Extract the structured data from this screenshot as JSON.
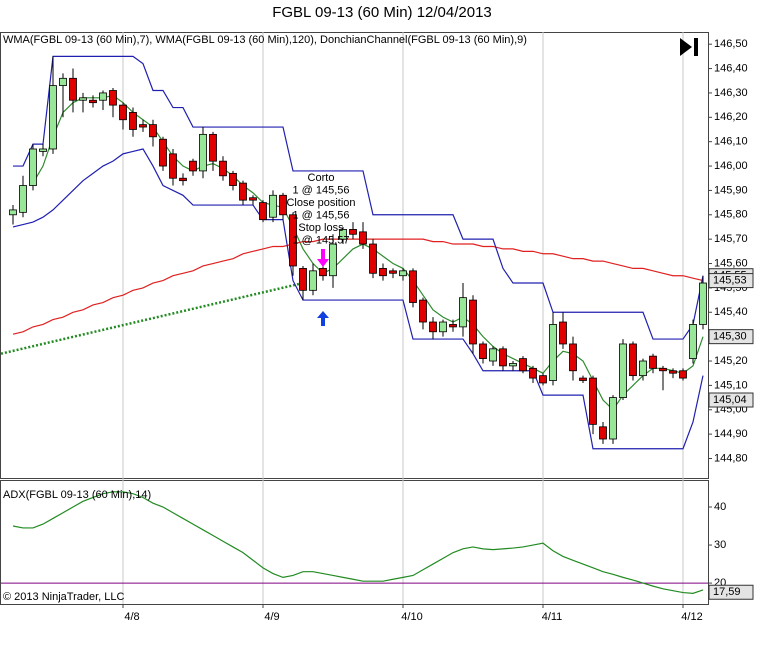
{
  "chart_data": [
    {
      "type": "candlestick",
      "title": "FGBL 09-13 (60 Min)  12/04/2013",
      "subtitle": "WMA(FGBL 09-13 (60 Min),7), WMA(FGBL 09-13 (60 Min),120), DonchianChannel(FGBL 09-13 (60 Min),9)",
      "categories": [
        null,
        null,
        null,
        null,
        null,
        null,
        null,
        null,
        null,
        null,
        null,
        "4/8",
        null,
        null,
        null,
        null,
        null,
        null,
        null,
        null,
        null,
        null,
        null,
        null,
        null,
        "4/9",
        null,
        null,
        null,
        null,
        null,
        null,
        null,
        null,
        null,
        null,
        null,
        null,
        null,
        "4/10",
        null,
        null,
        null,
        null,
        null,
        null,
        null,
        null,
        null,
        null,
        null,
        null,
        null,
        "4/11",
        null,
        null,
        null,
        null,
        null,
        null,
        null,
        null,
        null,
        null,
        null,
        null,
        null,
        "4/12",
        null,
        null
      ],
      "open": [
        145.8,
        145.81,
        145.92,
        146.06,
        146.07,
        146.33,
        146.36,
        146.27,
        146.27,
        146.27,
        146.31,
        146.25,
        146.22,
        146.17,
        146.17,
        146.11,
        146.05,
        145.95,
        146.02,
        145.98,
        146.13,
        146.02,
        145.97,
        145.93,
        145.87,
        145.85,
        145.79,
        145.88,
        145.8,
        145.58,
        145.49,
        145.58,
        145.55,
        145.7,
        145.74,
        145.73,
        145.68,
        145.58,
        145.57,
        145.55,
        145.57,
        145.45,
        145.36,
        145.32,
        145.35,
        145.34,
        145.45,
        145.27,
        145.2,
        145.25,
        145.18,
        145.21,
        145.17,
        145.14,
        145.12,
        145.36,
        145.27,
        145.13,
        145.13,
        144.93,
        144.88,
        145.05,
        145.27,
        145.14,
        145.22,
        145.17,
        145.16,
        145.16,
        145.21,
        145.35
      ],
      "high": [
        145.84,
        145.96,
        146.09,
        146.09,
        146.45,
        146.38,
        146.4,
        146.3,
        146.29,
        146.31,
        146.32,
        146.26,
        146.24,
        146.19,
        146.19,
        146.12,
        146.07,
        145.97,
        146.03,
        146.16,
        146.14,
        146.04,
        145.98,
        145.94,
        145.88,
        145.86,
        145.9,
        145.89,
        145.81,
        145.59,
        145.6,
        145.59,
        145.72,
        145.75,
        145.77,
        145.77,
        145.7,
        145.6,
        145.58,
        145.58,
        145.58,
        145.46,
        145.38,
        145.37,
        145.37,
        145.52,
        145.47,
        145.28,
        145.26,
        145.26,
        145.2,
        145.22,
        145.18,
        145.15,
        145.4,
        145.4,
        145.3,
        145.14,
        145.14,
        144.95,
        145.06,
        145.29,
        145.28,
        145.21,
        145.23,
        145.18,
        145.17,
        145.17,
        145.37,
        145.55
      ],
      "low": [
        145.76,
        145.79,
        145.9,
        146.04,
        146.05,
        146.2,
        146.22,
        146.22,
        146.24,
        146.23,
        146.2,
        146.15,
        146.12,
        146.14,
        146.08,
        145.98,
        145.92,
        145.92,
        145.96,
        145.95,
        145.98,
        145.94,
        145.9,
        145.84,
        145.84,
        145.77,
        145.77,
        145.78,
        145.55,
        145.45,
        145.47,
        145.53,
        145.5,
        145.68,
        145.7,
        145.66,
        145.54,
        145.53,
        145.54,
        145.53,
        145.42,
        145.33,
        145.29,
        145.3,
        145.32,
        145.3,
        145.23,
        145.19,
        145.18,
        145.16,
        145.16,
        145.15,
        145.11,
        145.1,
        145.1,
        145.25,
        145.12,
        145.11,
        144.9,
        144.86,
        144.86,
        145.04,
        145.12,
        145.12,
        145.15,
        145.08,
        145.13,
        145.12,
        145.19,
        145.33
      ],
      "close": [
        145.82,
        145.92,
        146.07,
        146.07,
        146.33,
        146.36,
        146.27,
        146.28,
        146.26,
        146.3,
        146.25,
        146.19,
        146.15,
        146.16,
        146.12,
        146.0,
        145.95,
        145.94,
        145.98,
        146.13,
        146.02,
        145.96,
        145.92,
        145.86,
        145.86,
        145.78,
        145.88,
        145.8,
        145.59,
        145.49,
        145.57,
        145.55,
        145.68,
        145.74,
        145.72,
        145.68,
        145.56,
        145.55,
        145.56,
        145.57,
        145.44,
        145.36,
        145.32,
        145.36,
        145.34,
        145.46,
        145.27,
        145.21,
        145.25,
        145.18,
        145.19,
        145.16,
        145.13,
        145.11,
        145.35,
        145.27,
        145.16,
        145.12,
        144.94,
        144.88,
        145.05,
        145.27,
        145.14,
        145.2,
        145.17,
        145.16,
        145.15,
        145.13,
        145.35,
        145.52
      ],
      "up_color": "#98e698",
      "down_color": "#e00000",
      "series": [
        {
          "color": "#2e8b2e",
          "values": [
            null,
            null,
            145.93,
            146.0,
            146.12,
            146.22,
            146.26,
            146.28,
            146.28,
            146.28,
            146.29,
            146.26,
            146.22,
            146.19,
            146.16,
            146.1,
            146.04,
            146.0,
            145.98,
            146.0,
            146.01,
            145.99,
            145.96,
            145.92,
            145.89,
            145.85,
            145.84,
            145.83,
            145.75,
            145.66,
            145.6,
            145.56,
            145.58,
            145.62,
            145.66,
            145.68,
            145.66,
            145.63,
            145.6,
            145.58,
            145.53,
            145.47,
            145.41,
            145.38,
            145.36,
            145.38,
            145.35,
            145.3,
            145.26,
            145.23,
            145.21,
            145.19,
            145.17,
            145.15,
            145.2,
            145.24,
            145.23,
            145.2,
            145.12,
            145.04,
            145.0,
            145.06,
            145.1,
            145.14,
            145.17,
            145.17,
            145.16,
            145.15,
            145.18,
            145.3
          ]
        },
        {
          "color": "#e02020",
          "values": [
            145.31,
            145.32,
            145.34,
            145.35,
            145.37,
            145.38,
            145.4,
            145.41,
            145.43,
            145.44,
            145.46,
            145.47,
            145.49,
            145.5,
            145.52,
            145.53,
            145.55,
            145.56,
            145.57,
            145.59,
            145.6,
            145.61,
            145.62,
            145.64,
            145.65,
            145.66,
            145.67,
            145.67,
            145.68,
            145.69,
            145.69,
            145.7,
            145.7,
            145.7,
            145.7,
            145.7,
            145.7,
            145.7,
            145.7,
            145.7,
            145.7,
            145.7,
            145.69,
            145.69,
            145.68,
            145.68,
            145.68,
            145.67,
            145.67,
            145.66,
            145.66,
            145.65,
            145.65,
            145.64,
            145.64,
            145.63,
            145.62,
            145.62,
            145.61,
            145.61,
            145.6,
            145.59,
            145.58,
            145.58,
            145.57,
            145.56,
            145.55,
            145.55,
            145.54,
            145.53
          ]
        },
        {
          "color": "#2020b0",
          "values": [
            146.0,
            146.0,
            146.09,
            146.09,
            146.45,
            146.45,
            146.45,
            146.45,
            146.45,
            146.45,
            146.45,
            146.45,
            146.45,
            146.42,
            146.31,
            146.31,
            146.24,
            146.24,
            146.16,
            146.16,
            146.16,
            146.16,
            146.16,
            146.16,
            146.16,
            146.16,
            146.16,
            146.16,
            145.98,
            145.98,
            145.98,
            145.98,
            145.98,
            145.98,
            145.98,
            145.98,
            145.8,
            145.8,
            145.8,
            145.8,
            145.8,
            145.8,
            145.8,
            145.8,
            145.8,
            145.7,
            145.7,
            145.7,
            145.7,
            145.58,
            145.52,
            145.52,
            145.52,
            145.52,
            145.4,
            145.4,
            145.4,
            145.4,
            145.4,
            145.4,
            145.4,
            145.4,
            145.4,
            145.4,
            145.29,
            145.29,
            145.29,
            145.29,
            145.35,
            145.55
          ]
        },
        {
          "color": "#2020b0",
          "values": [
            145.75,
            145.76,
            145.77,
            145.79,
            145.82,
            145.86,
            145.9,
            145.94,
            145.97,
            146.0,
            146.02,
            146.05,
            146.06,
            146.07,
            146.0,
            145.92,
            145.9,
            145.88,
            145.84,
            145.84,
            145.84,
            145.84,
            145.84,
            145.84,
            145.84,
            145.78,
            145.78,
            145.78,
            145.53,
            145.45,
            145.45,
            145.45,
            145.45,
            145.45,
            145.45,
            145.45,
            145.45,
            145.45,
            145.45,
            145.45,
            145.29,
            145.29,
            145.29,
            145.29,
            145.29,
            145.29,
            145.23,
            145.16,
            145.16,
            145.16,
            145.16,
            145.16,
            145.16,
            145.06,
            145.06,
            145.06,
            145.06,
            145.06,
            144.84,
            144.84,
            144.84,
            144.84,
            144.84,
            144.84,
            144.84,
            144.84,
            144.84,
            144.84,
            144.95,
            145.14
          ]
        }
      ],
      "trade_line": {
        "values": [
          145.23,
          145.52
        ],
        "color": "#228b22"
      },
      "annotations": [
        "Corto",
        "1 @ 145,56",
        "Close position",
        "1 @ 145,56",
        "Stop loss",
        "1 @ 145,57"
      ],
      "markers": [
        {
          "value": 145.55,
          "label": "145,55"
        },
        {
          "value": 145.53,
          "label": "145,53"
        },
        {
          "value": 145.3,
          "label": "145,30"
        },
        {
          "value": 145.04,
          "label": "145,04"
        }
      ],
      "ylim": [
        144.72,
        146.55
      ],
      "yticks": [
        {
          "value": 146.5,
          "label": "146,50"
        },
        {
          "value": 146.4,
          "label": "146,40"
        },
        {
          "value": 146.3,
          "label": "146,30"
        },
        {
          "value": 146.2,
          "label": "146,20"
        },
        {
          "value": 146.1,
          "label": "146,10"
        },
        {
          "value": 146.0,
          "label": "146,00"
        },
        {
          "value": 145.9,
          "label": "145,90"
        },
        {
          "value": 145.8,
          "label": "145,80"
        },
        {
          "value": 145.7,
          "label": "145,70"
        },
        {
          "value": 145.6,
          "label": "145,60"
        },
        {
          "value": 145.5,
          "label": "145,50"
        },
        {
          "value": 145.4,
          "label": "145,40"
        },
        {
          "value": 145.3,
          "label": "145,30"
        },
        {
          "value": 145.2,
          "label": "145,20"
        },
        {
          "value": 145.1,
          "label": "145,10"
        },
        {
          "value": 145.0,
          "label": "145,00"
        },
        {
          "value": 144.9,
          "label": "144,90"
        },
        {
          "value": 144.8,
          "label": "144,80"
        }
      ]
    },
    {
      "type": "line",
      "title": "ADX(FGBL 09-13 (60 Min),14)",
      "copyright": "© 2013 NinjaTrader, LLC",
      "color": "#228b22",
      "values": [
        35,
        34.5,
        34.5,
        35.5,
        37,
        38.5,
        40,
        41.5,
        42.5,
        43.5,
        44,
        44,
        43.5,
        42.5,
        41,
        40,
        38.5,
        37,
        35.5,
        34,
        32.5,
        31,
        29.5,
        28,
        26,
        24,
        22.5,
        21.5,
        22,
        23,
        23,
        22.5,
        22,
        21.5,
        21,
        20.5,
        20.5,
        20.5,
        21,
        21.5,
        22,
        23.5,
        25,
        26.5,
        28,
        29,
        29.5,
        29,
        28.8,
        29,
        29.2,
        29.5,
        30,
        30.5,
        28.5,
        27,
        26,
        25,
        24,
        23,
        22.3,
        21.5,
        20.8,
        20,
        19.2,
        18.5,
        18,
        17.5,
        17.3,
        18.2
      ],
      "level_line": {
        "value": 20,
        "color": "#800080"
      },
      "markers": [
        {
          "value": 17.59,
          "label": "17,59"
        }
      ],
      "ylim": [
        14.5,
        47.1
      ],
      "yticks": [
        40,
        30,
        20
      ]
    }
  ]
}
